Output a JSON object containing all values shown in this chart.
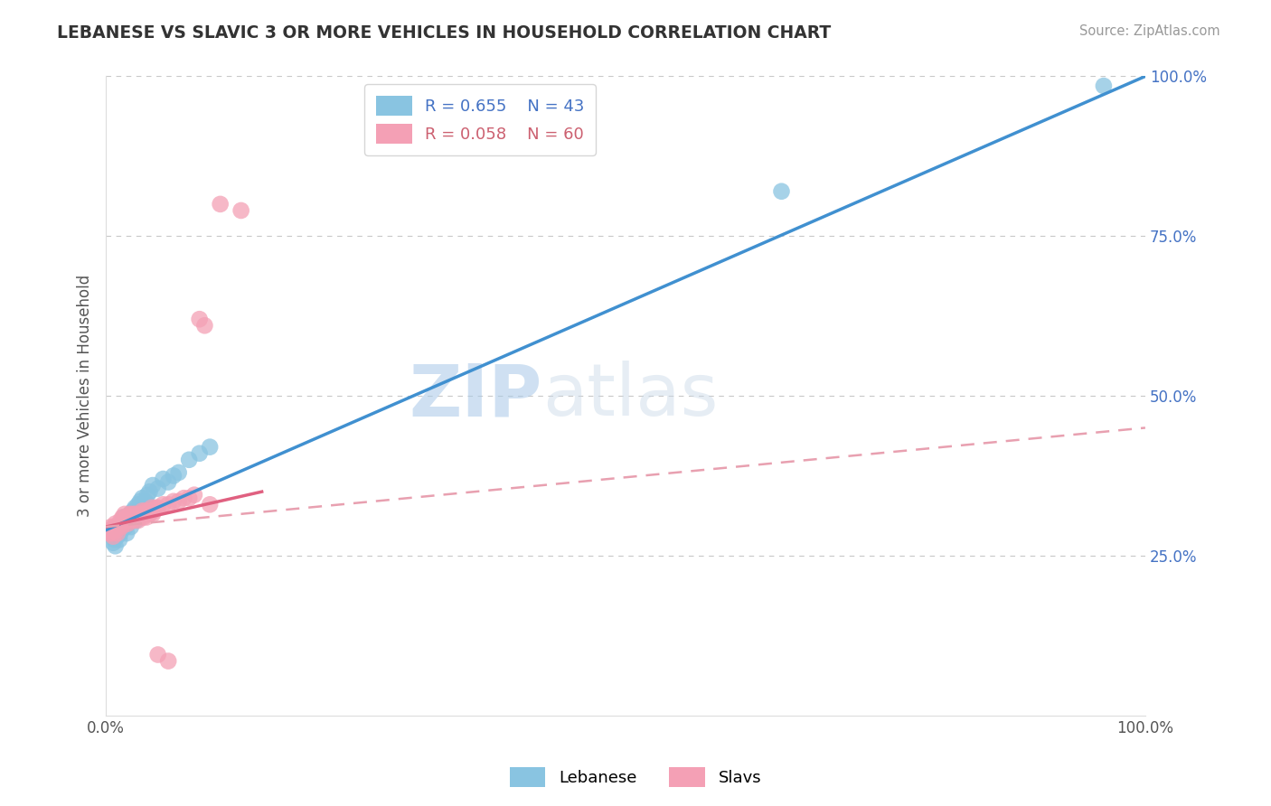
{
  "title": "LEBANESE VS SLAVIC 3 OR MORE VEHICLES IN HOUSEHOLD CORRELATION CHART",
  "source_text": "Source: ZipAtlas.com",
  "ylabel": "3 or more Vehicles in Household",
  "xlim": [
    0.0,
    1.0
  ],
  "ylim": [
    0.0,
    1.0
  ],
  "xticklabels_pos": [
    0.0,
    1.0
  ],
  "xticklabels": [
    "0.0%",
    "100.0%"
  ],
  "yticks_right": [
    0.25,
    0.5,
    0.75,
    1.0
  ],
  "yticks_right_labels": [
    "25.0%",
    "50.0%",
    "75.0%",
    "100.0%"
  ],
  "legend_r_leb": "R = 0.655",
  "legend_n_leb": "N = 43",
  "legend_r_slav": "R = 0.058",
  "legend_n_slav": "N = 60",
  "leb_color": "#89c4e1",
  "slav_color": "#f4a0b5",
  "leb_line_color": "#4090d0",
  "slav_line_color": "#e06080",
  "slav_dashed_color": "#e8a0b0",
  "watermark_zip": "ZIP",
  "watermark_atlas": "atlas",
  "grid_color": "#c8c8c8",
  "bg_color": "#ffffff",
  "leb_x": [
    0.005,
    0.007,
    0.008,
    0.009,
    0.01,
    0.011,
    0.012,
    0.013,
    0.014,
    0.015,
    0.016,
    0.017,
    0.018,
    0.019,
    0.02,
    0.021,
    0.022,
    0.023,
    0.024,
    0.025,
    0.026,
    0.027,
    0.028,
    0.029,
    0.03,
    0.031,
    0.032,
    0.033,
    0.035,
    0.038,
    0.04,
    0.042,
    0.045,
    0.05,
    0.055,
    0.06,
    0.065,
    0.07,
    0.08,
    0.09,
    0.1,
    0.65,
    0.96
  ],
  "leb_y": [
    0.285,
    0.27,
    0.275,
    0.265,
    0.29,
    0.28,
    0.295,
    0.275,
    0.285,
    0.29,
    0.3,
    0.31,
    0.305,
    0.295,
    0.285,
    0.3,
    0.31,
    0.315,
    0.295,
    0.305,
    0.32,
    0.31,
    0.325,
    0.305,
    0.315,
    0.33,
    0.32,
    0.335,
    0.34,
    0.335,
    0.345,
    0.35,
    0.36,
    0.355,
    0.37,
    0.365,
    0.375,
    0.38,
    0.4,
    0.41,
    0.42,
    0.82,
    0.985
  ],
  "slav_x": [
    0.003,
    0.004,
    0.005,
    0.006,
    0.007,
    0.008,
    0.009,
    0.01,
    0.011,
    0.012,
    0.013,
    0.014,
    0.015,
    0.016,
    0.017,
    0.018,
    0.019,
    0.02,
    0.021,
    0.022,
    0.023,
    0.024,
    0.025,
    0.026,
    0.027,
    0.028,
    0.029,
    0.03,
    0.031,
    0.032,
    0.033,
    0.034,
    0.035,
    0.036,
    0.037,
    0.038,
    0.039,
    0.04,
    0.041,
    0.042,
    0.043,
    0.044,
    0.045,
    0.046,
    0.048,
    0.05,
    0.055,
    0.06,
    0.065,
    0.07,
    0.075,
    0.08,
    0.085,
    0.09,
    0.095,
    0.1,
    0.11,
    0.13,
    0.05,
    0.06
  ],
  "slav_y": [
    0.285,
    0.29,
    0.295,
    0.285,
    0.28,
    0.295,
    0.3,
    0.29,
    0.285,
    0.295,
    0.3,
    0.305,
    0.295,
    0.31,
    0.3,
    0.315,
    0.305,
    0.31,
    0.3,
    0.31,
    0.315,
    0.305,
    0.31,
    0.315,
    0.305,
    0.315,
    0.31,
    0.31,
    0.305,
    0.315,
    0.31,
    0.315,
    0.32,
    0.31,
    0.315,
    0.32,
    0.31,
    0.315,
    0.32,
    0.315,
    0.32,
    0.325,
    0.315,
    0.32,
    0.325,
    0.325,
    0.33,
    0.33,
    0.335,
    0.335,
    0.34,
    0.34,
    0.345,
    0.62,
    0.61,
    0.33,
    0.8,
    0.79,
    0.095,
    0.085
  ],
  "leb_line": [
    0.0,
    1.0,
    0.29,
    1.0
  ],
  "slav_line_solid": [
    0.0,
    0.15,
    0.295,
    0.35
  ],
  "slav_line_dashed": [
    0.0,
    1.0,
    0.295,
    0.45
  ]
}
